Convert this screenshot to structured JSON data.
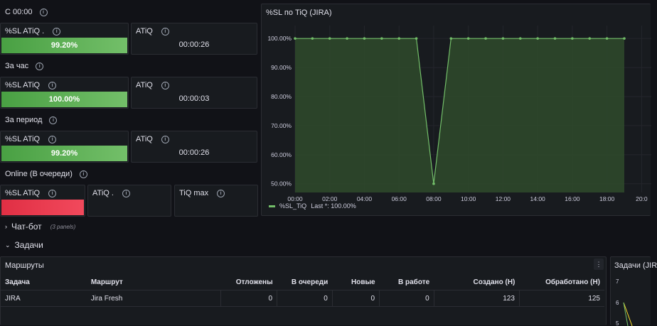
{
  "rows": {
    "since_midnight": "С 00:00",
    "hour": "За час",
    "period": "За период",
    "online": "Online (В очереди)",
    "chatbot": "Чат-бот",
    "chatbot_panels": "(3 panels)",
    "tasks": "Задачи"
  },
  "stat_groups": [
    {
      "sl_title": "%SL ATiQ .",
      "sl_value": "99.20%",
      "atiq_title": "ATiQ",
      "atiq_value": "00:00:26"
    },
    {
      "sl_title": "%SL ATiQ",
      "sl_value": "100.00%",
      "atiq_title": "ATiQ",
      "atiq_value": "00:00:03"
    },
    {
      "sl_title": "%SL ATiQ",
      "sl_value": "99.20%",
      "atiq_title": "ATiQ",
      "atiq_value": "00:00:26"
    }
  ],
  "online_panels": {
    "sl_title": "%SL ATiQ",
    "atiq_title": "ATiQ .",
    "tiqmax_title": "TiQ max"
  },
  "chart_panel": {
    "title": "%SL по TiQ (JIRA)",
    "legend_series": "%SL_TiQ",
    "legend_last": "Last *: 100.00%"
  },
  "chart_data": {
    "type": "area",
    "title": "%SL по TiQ (JIRA)",
    "x": [
      "00:00",
      "01:00",
      "02:00",
      "03:00",
      "04:00",
      "05:00",
      "06:00",
      "07:00",
      "08:00",
      "09:00",
      "10:00",
      "11:00",
      "12:00",
      "13:00",
      "14:00",
      "15:00",
      "16:00",
      "17:00",
      "18:00",
      "19:00"
    ],
    "series": [
      {
        "name": "%SL_TiQ",
        "values": [
          100,
          100,
          100,
          100,
          100,
          100,
          100,
          100,
          50,
          100,
          100,
          100,
          100,
          100,
          100,
          100,
          100,
          100,
          100,
          100
        ]
      }
    ],
    "x_ticks": [
      "00:00",
      "02:00",
      "04:00",
      "06:00",
      "08:00",
      "10:00",
      "12:00",
      "14:00",
      "16:00",
      "18:00",
      "20:0"
    ],
    "y_ticks": [
      "100.00%",
      "90.00%",
      "80.00%",
      "70.00%",
      "60.00%",
      "50.00%"
    ],
    "ylim": [
      47,
      102
    ],
    "grid": true,
    "legend": "bottom-left",
    "colors": {
      "line": "#73bf69",
      "fill": "#2f4a2b"
    }
  },
  "routes": {
    "title": "Маршруты",
    "columns": [
      "Задача",
      "Маршрут",
      "Отложены",
      "В очереди",
      "Новые",
      "В работе",
      "Создано (Н)",
      "Обработано (Н)"
    ],
    "rows": [
      [
        "JIRA",
        "Jira Fresh",
        "0",
        "0",
        "0",
        "0",
        "123",
        "125"
      ]
    ]
  },
  "side_panel": {
    "title": "Задачи (JIR",
    "ticks": [
      "7",
      "6",
      "5"
    ]
  },
  "colors": {
    "bg": "#111217",
    "panel": "#181b1f",
    "green": "#73bf69",
    "red": "#f2495c"
  }
}
